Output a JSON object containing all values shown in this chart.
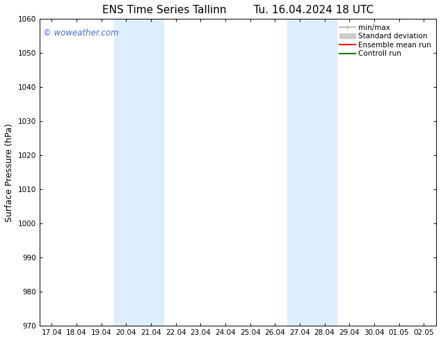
{
  "title_left": "ENS Time Series Tallinn",
  "title_right": "Tu. 16.04.2024 18 UTC",
  "ylabel": "Surface Pressure (hPa)",
  "ylim": [
    970,
    1060
  ],
  "yticks": [
    970,
    980,
    990,
    1000,
    1010,
    1020,
    1030,
    1040,
    1050,
    1060
  ],
  "xtick_labels": [
    "17.04",
    "18.04",
    "19.04",
    "20.04",
    "21.04",
    "22.04",
    "23.04",
    "24.04",
    "25.04",
    "26.04",
    "27.04",
    "28.04",
    "29.04",
    "30.04",
    "01.05",
    "02.05"
  ],
  "shaded_regions": [
    {
      "xstart": 3,
      "xend": 5
    },
    {
      "xstart": 10,
      "xend": 12
    }
  ],
  "shaded_color": "#ddeeff",
  "watermark_text": "© woweather.com",
  "watermark_color": "#4169e1",
  "bg_color": "#ffffff",
  "legend_entries": [
    {
      "label": "min/max",
      "color": "#b0b0b0",
      "style": "minmax"
    },
    {
      "label": "Standard deviation",
      "color": "#cccccc",
      "style": "thick"
    },
    {
      "label": "Ensemble mean run",
      "color": "#ff0000",
      "style": "line"
    },
    {
      "label": "Controll run",
      "color": "#008000",
      "style": "line"
    }
  ],
  "title_fontsize": 11,
  "tick_fontsize": 7.5,
  "ylabel_fontsize": 9,
  "legend_fontsize": 7.5,
  "watermark_fontsize": 8.5
}
